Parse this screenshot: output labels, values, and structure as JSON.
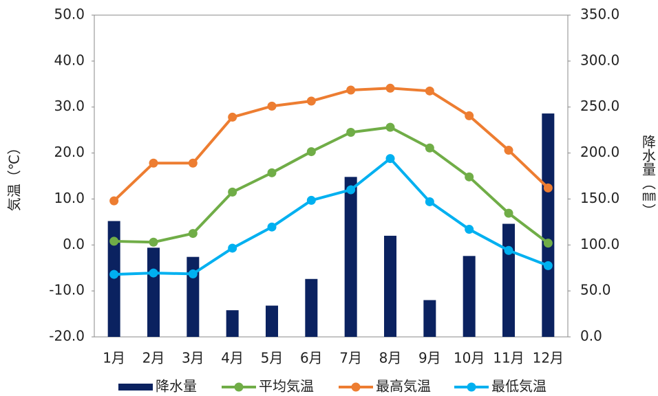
{
  "chart_data": {
    "type": "combo",
    "categories": [
      "1月",
      "2月",
      "3月",
      "4月",
      "5月",
      "6月",
      "7月",
      "8月",
      "9月",
      "10月",
      "11月",
      "12月"
    ],
    "ylabel": "気温（℃）",
    "y2label": "降水量（㎜）",
    "ylim": [
      -20,
      50
    ],
    "yticks": [
      {
        "value": -20,
        "label": "-20.0"
      },
      {
        "value": -10,
        "label": "-10.0"
      },
      {
        "value": 0,
        "label": "0.0"
      },
      {
        "value": 10,
        "label": "10.0"
      },
      {
        "value": 20,
        "label": "20.0"
      },
      {
        "value": 30,
        "label": "30.0"
      },
      {
        "value": 40,
        "label": "40.0"
      },
      {
        "value": 50,
        "label": "50.0"
      }
    ],
    "y2lim": [
      0,
      350
    ],
    "y2ticks": [
      {
        "value": 0,
        "label": "0.0"
      },
      {
        "value": 50,
        "label": "50.0"
      },
      {
        "value": 100,
        "label": "100.0"
      },
      {
        "value": 150,
        "label": "150.0"
      },
      {
        "value": 200,
        "label": "200.0"
      },
      {
        "value": 250,
        "label": "250.0"
      },
      {
        "value": 300,
        "label": "300.0"
      },
      {
        "value": 350,
        "label": "350.0"
      }
    ],
    "grid": false,
    "legend": "bottom",
    "series": [
      {
        "name": "降水量",
        "type": "bar",
        "axis": "y2",
        "color": "#0b2260",
        "values": [
          126,
          97,
          87,
          29,
          34,
          63,
          174,
          110,
          40,
          88,
          123,
          243
        ]
      },
      {
        "name": "平均気温",
        "type": "line",
        "color": "#70ad47",
        "values": [
          0.8,
          0.6,
          2.5,
          11.5,
          15.7,
          20.3,
          24.5,
          25.6,
          21.1,
          14.8,
          6.9,
          0.4
        ]
      },
      {
        "name": "最高気温",
        "type": "line",
        "color": "#ed7d31",
        "values": [
          9.6,
          17.8,
          17.8,
          27.8,
          30.2,
          31.3,
          33.7,
          34.1,
          33.5,
          28.1,
          20.6,
          12.4
        ]
      },
      {
        "name": "最低気温",
        "type": "line",
        "color": "#00b0f0",
        "values": [
          -6.4,
          -6.1,
          -6.3,
          -0.7,
          3.9,
          9.7,
          12.0,
          18.8,
          9.4,
          3.4,
          -1.2,
          -4.5
        ]
      }
    ]
  }
}
